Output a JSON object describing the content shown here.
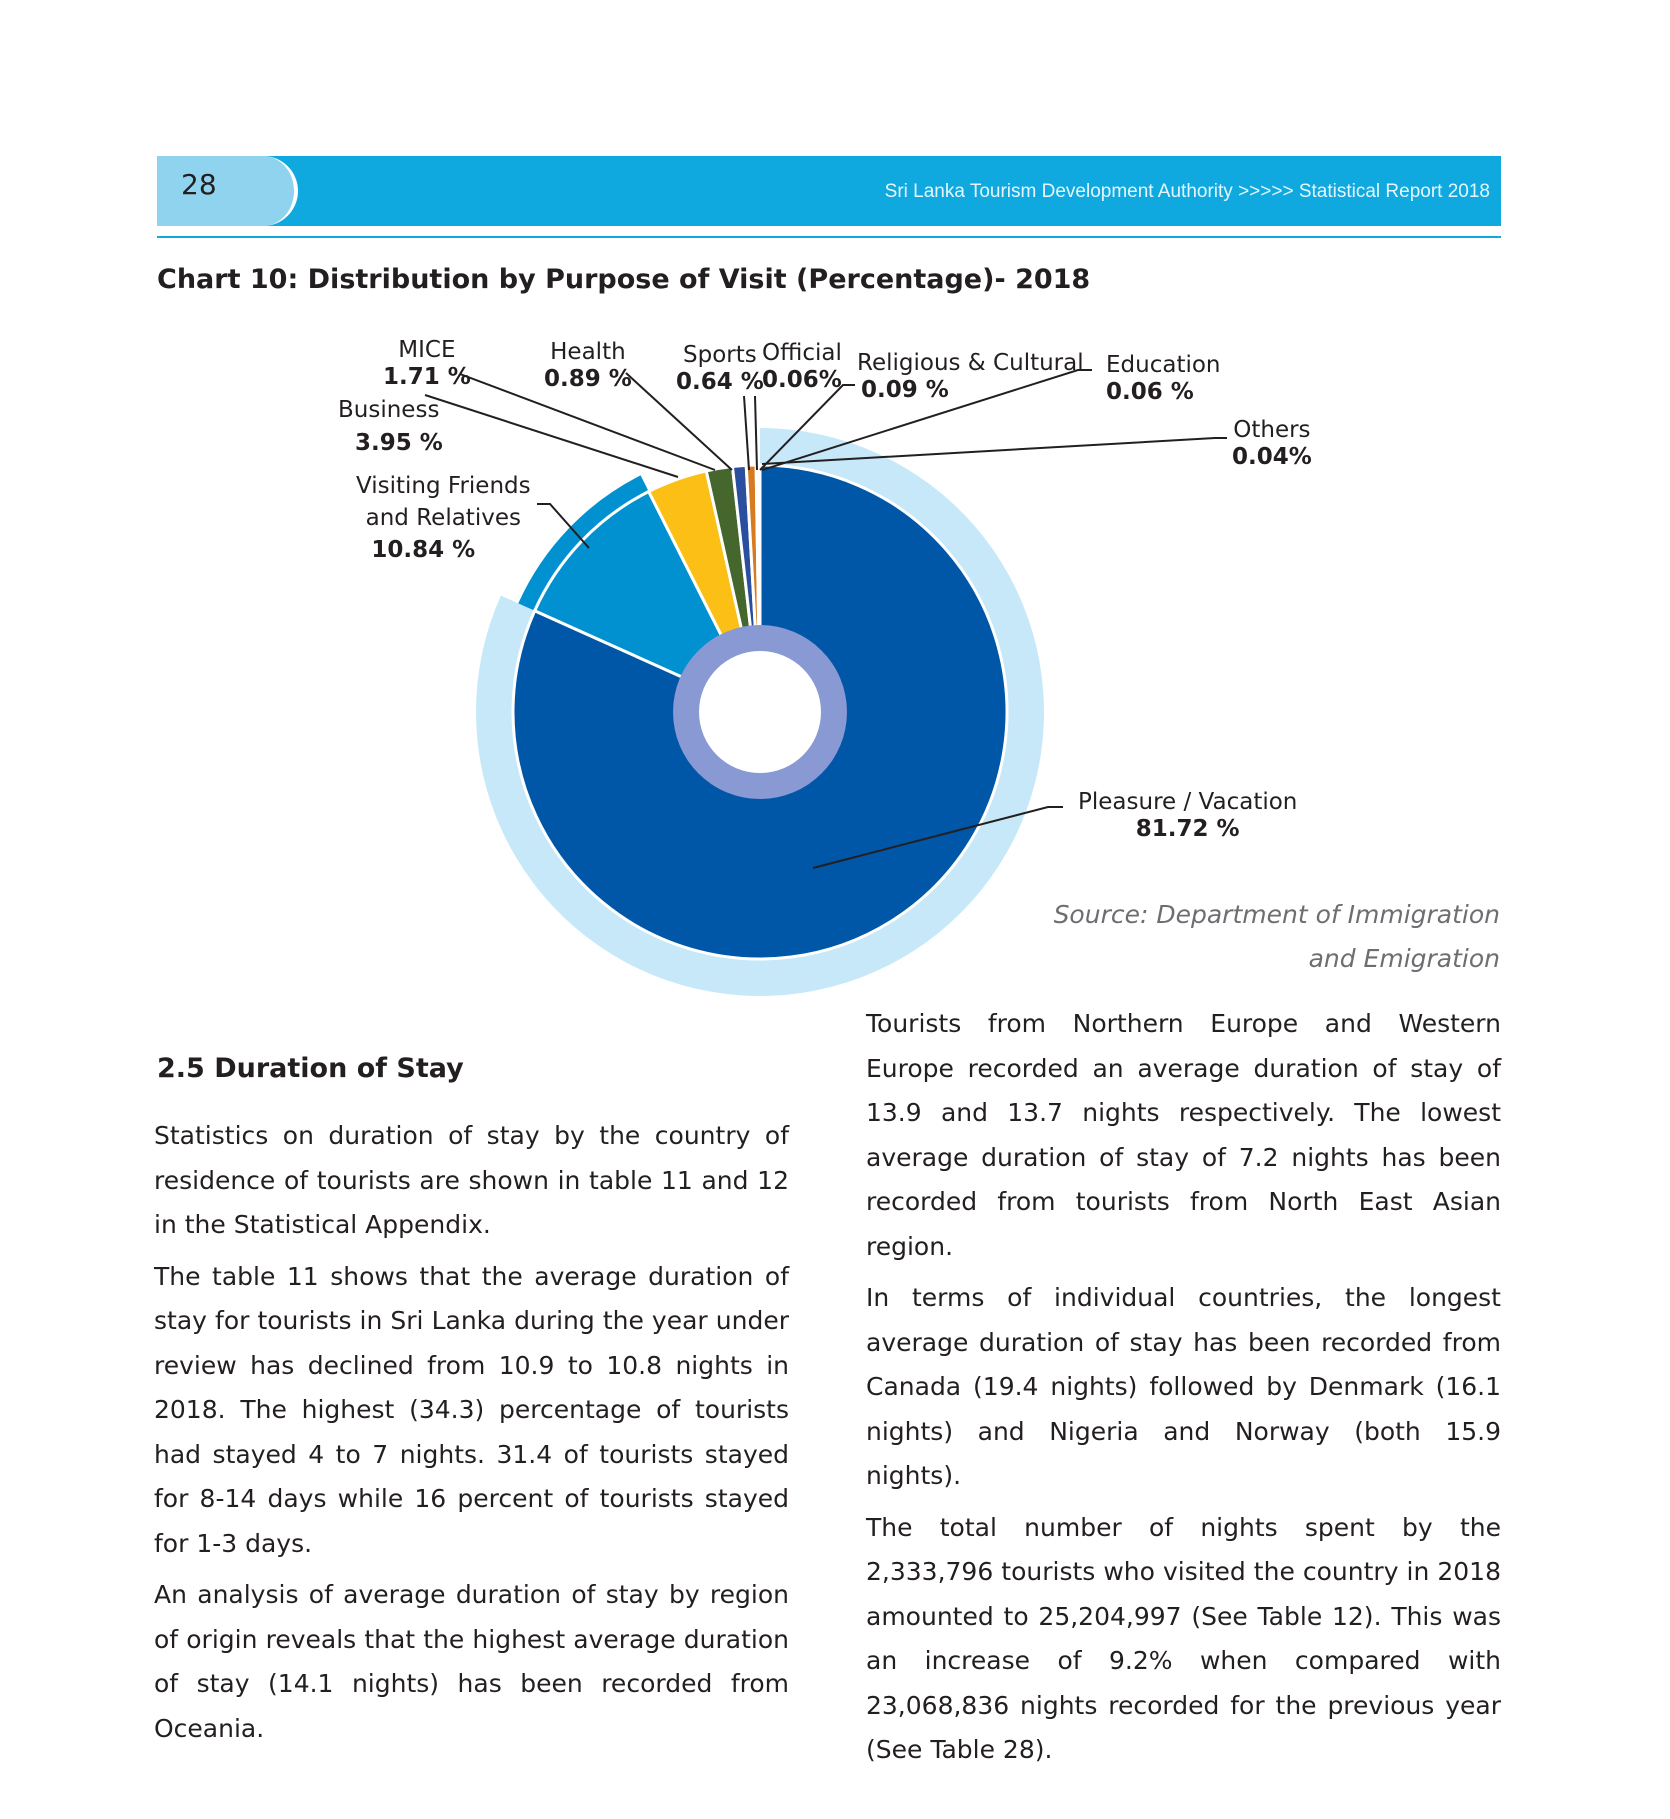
{
  "header": {
    "page_number": "28",
    "title": "Sri Lanka Tourism Development Authority >>>>> Statistical Report 2018"
  },
  "chart_title": "Chart 10: Distribution by Purpose of Visit (Percentage)- 2018",
  "chart_data": {
    "type": "pie",
    "title": "Chart 10: Distribution by Purpose of Visit (Percentage)- 2018",
    "slices": [
      {
        "label": "Pleasure / Vacation",
        "value": 81.72,
        "display": "81.72 %",
        "color": "#0056a7"
      },
      {
        "label": "Visiting Friends and Relatives",
        "value": 10.84,
        "display": "10.84 %",
        "color": "#0191d1"
      },
      {
        "label": "Business",
        "value": 3.95,
        "display": "3.95 %",
        "color": "#fbbf15"
      },
      {
        "label": "MICE",
        "value": 1.71,
        "display": "1.71 %",
        "color": "#45672e"
      },
      {
        "label": "Health",
        "value": 0.89,
        "display": "0.89 %",
        "color": "#2a4f9e"
      },
      {
        "label": "Sports",
        "value": 0.64,
        "display": "0.64 %",
        "color": "#d77b23"
      },
      {
        "label": "Official",
        "value": 0.06,
        "display": "0.06%",
        "color": "#7f7f7f"
      },
      {
        "label": "Religious & Cultural",
        "value": 0.09,
        "display": "0.09 %",
        "color": "#9e5a2a"
      },
      {
        "label": "Education",
        "value": 0.06,
        "display": "0.06 %",
        "color": "#5e8e3e"
      },
      {
        "label": "Others",
        "value": 0.04,
        "display": "0.04%",
        "color": "#333333"
      }
    ],
    "colors": {
      "outer_ring": "#c6e8f8",
      "inner_ring": "#8899d3",
      "leader": "#231f20"
    }
  },
  "labels": {
    "mice": {
      "name": "MICE",
      "value": "1.71 %"
    },
    "health": {
      "name": "Health",
      "value": "0.89 %"
    },
    "sports": {
      "name": "Sports",
      "value": "0.64 %"
    },
    "official": {
      "name": "Official",
      "value": "0.06%"
    },
    "religious": {
      "name": "Religious & Cultural",
      "value": "0.09 %"
    },
    "education": {
      "name": "Education",
      "value": "0.06 %"
    },
    "others": {
      "name": "Others",
      "value": "0.04%"
    },
    "business": {
      "name": "Business",
      "value": "3.95 %"
    },
    "vfr": {
      "name_line1": "Visiting Friends",
      "name_line2": "and Relatives",
      "value": "10.84 %"
    },
    "pleasure": {
      "name": "Pleasure / Vacation",
      "value": "81.72 %"
    }
  },
  "source": {
    "line1": "Source: Department of Immigration",
    "line2": "and Emigration"
  },
  "section": {
    "heading": "2.5 Duration of Stay",
    "left_paragraphs": [
      "Statistics on duration of stay by the country of residence of tourists are shown in table 11 and 12 in the Statistical Appendix.",
      "The table 11 shows that the average duration of stay for tourists in Sri Lanka during the year under review has declined from 10.9 to 10.8 nights in 2018. The highest (34.3) percentage of tourists had stayed 4 to 7 nights. 31.4 of tourists stayed for 8-14 days while 16 percent of tourists stayed for 1-3 days.",
      "An analysis of average duration of stay by region of origin reveals that the highest average duration of stay (14.1 nights) has been recorded from Oceania."
    ],
    "right_paragraphs": [
      "Tourists from Northern Europe and Western Europe recorded an average duration of stay of 13.9 and 13.7 nights respectively. The lowest average duration of stay of 7.2 nights has been recorded from tourists from North East Asian region.",
      "In terms of individual countries, the longest average duration of stay has been recorded from Canada (19.4 nights) followed by Denmark (16.1 nights) and Nigeria and Norway (both 15.9 nights).",
      "The total number of nights spent by the 2,333,796 tourists who visited the country in 2018 amounted to 25,204,997 (See Table 12).  This was an increase of 9.2% when compared with 23,068,836 nights recorded for the previous year (See Table 28)."
    ]
  }
}
